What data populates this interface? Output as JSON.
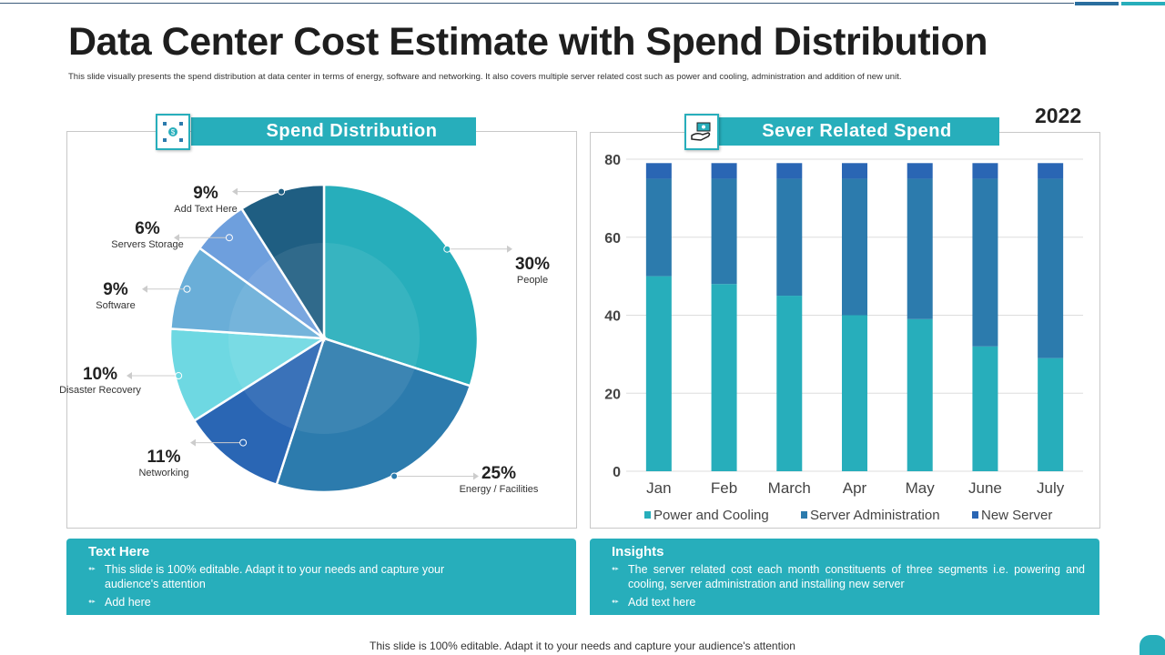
{
  "title": "Data Center Cost Estimate with Spend Distribution",
  "subtitle": "This slide visually presents the spend distribution at data center in terms of energy, software and networking. It also covers multiple server related cost such as power and cooling, administration and addition of new unit.",
  "colors": {
    "accent": "#27AEBB"
  },
  "left_panel": {
    "title": "Spend Distribution",
    "icon": "dollar-network-icon"
  },
  "right_panel": {
    "title": "Sever Related Spend",
    "icon": "money-hand-icon",
    "year": "2022"
  },
  "chart_data": [
    {
      "type": "pie",
      "title": "Spend Distribution",
      "slices": [
        {
          "label": "People",
          "value": 30,
          "display": "30%",
          "color": "#27AEBB"
        },
        {
          "label": "Energy / Facilities",
          "value": 25,
          "display": "25%",
          "color": "#2C7BAD"
        },
        {
          "label": "Networking",
          "value": 11,
          "display": "11%",
          "color": "#2A66B4"
        },
        {
          "label": "Disaster Recovery",
          "value": 10,
          "display": "10%",
          "color": "#6ED8E2"
        },
        {
          "label": "Software",
          "value": 9,
          "display": "9%",
          "color": "#6AAED8"
        },
        {
          "label": "Servers Storage",
          "value": 6,
          "display": "6%",
          "color": "#6E9FDD"
        },
        {
          "label": "Add Text Here",
          "value": 9,
          "display": "9%",
          "color": "#1F5E82"
        }
      ]
    },
    {
      "type": "bar",
      "stacked": true,
      "title": "Sever Related Spend",
      "categories": [
        "Jan",
        "Feb",
        "March",
        "Apr",
        "May",
        "June",
        "July"
      ],
      "ylim": [
        0,
        80
      ],
      "yticks": [
        "0",
        "20",
        "40",
        "60",
        "80"
      ],
      "grid": true,
      "legend": "bottom",
      "series": [
        {
          "name": "Power and Cooling",
          "color": "#27AEBB",
          "values": [
            50,
            48,
            45,
            40,
            39,
            32,
            29
          ]
        },
        {
          "name": "Server Administration",
          "color": "#2C7BAD",
          "values": [
            25,
            27,
            30,
            35,
            36,
            43,
            46
          ]
        },
        {
          "name": "New Server",
          "color": "#2A66B4",
          "values": [
            4,
            4,
            4,
            4,
            4,
            4,
            4
          ]
        }
      ]
    }
  ],
  "text_box": {
    "title": "Text Here",
    "items": [
      "This slide is 100% editable. Adapt it to your needs and capture your audience's attention",
      "Add here"
    ]
  },
  "insights_box": {
    "title": "Insights",
    "items": [
      "The server related cost each month constituents of three segments i.e. powering and cooling, server administration and installing new server",
      "Add text here"
    ]
  },
  "footer": "This slide is 100% editable. Adapt it to your needs and capture your audience's attention"
}
